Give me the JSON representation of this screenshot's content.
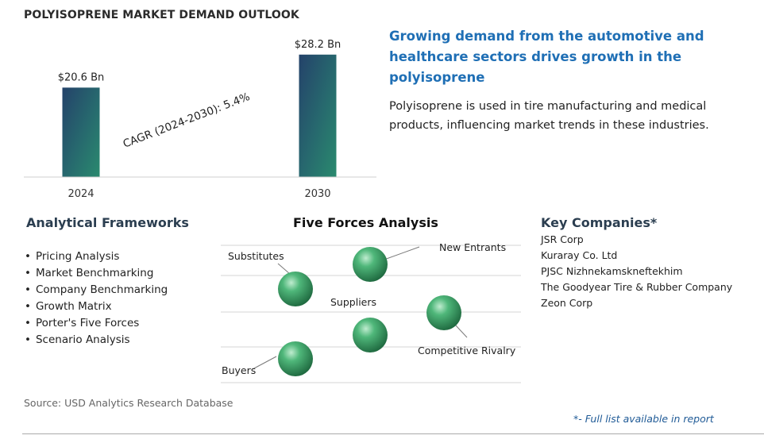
{
  "header": {
    "title": "POLYISOPRENE MARKET DEMAND OUTLOOK",
    "headline": "Growing demand from the automotive and healthcare sectors drives growth in the polyisoprene",
    "description": "Polyisoprene is used in tire manufacturing and medical products, influencing market trends in these industries."
  },
  "chart_data": {
    "type": "bar",
    "title": "",
    "categories": [
      "2024",
      "2030"
    ],
    "values": [
      20.6,
      28.2
    ],
    "data_labels": [
      "$20.6 Bn",
      "$28.2 Bn"
    ],
    "ylim": [
      0,
      32
    ],
    "cagr_label": "CAGR (2024-2030):  5.4%",
    "bar_colors": [
      "#2a8a6e",
      "#24426a"
    ]
  },
  "frameworks": {
    "heading": "Analytical Frameworks",
    "items": [
      "Pricing Analysis",
      "Market Benchmarking",
      "Company Benchmarking",
      "Growth Matrix",
      "Porter's Five Forces",
      "Scenario Analysis"
    ]
  },
  "five_forces": {
    "heading": "Five Forces Analysis",
    "labels": {
      "substitutes": "Substitutes",
      "new_entrants": "New Entrants",
      "suppliers": "Suppliers",
      "competitive_rivalry": "Competitive Rivalry",
      "buyers": "Buyers"
    }
  },
  "companies": {
    "heading": "Key Companies*",
    "items": [
      "JSR Corp",
      "Kuraray Co. Ltd",
      "PJSC Nizhnekamskneftekhim",
      "The Goodyear Tire & Rubber Company",
      "Zeon Corp"
    ]
  },
  "footer": {
    "source": "Source: USD Analytics Research Database",
    "note": "*- Full list available in report"
  }
}
